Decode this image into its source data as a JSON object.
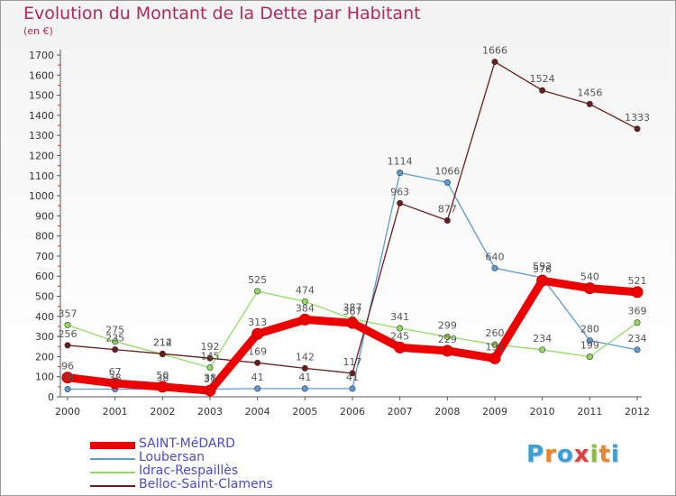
{
  "title": "Evolution du Montant de la Dette par Habitant",
  "subtitle": "(en €)",
  "logo": {
    "letters": [
      "P",
      "r",
      "o",
      "x",
      "i",
      "t",
      "i"
    ],
    "colors": [
      "#3aa0d8",
      "#e8862a",
      "#3aa0d8",
      "#e04040",
      "#8cbf3a",
      "#e8862a",
      "#3aa0d8"
    ]
  },
  "chart_data": {
    "type": "line",
    "x": [
      "2000",
      "2001",
      "2002",
      "2003",
      "2004",
      "2005",
      "2006",
      "2007",
      "2008",
      "2009",
      "2010",
      "2011",
      "2012"
    ],
    "ylim": [
      0,
      1700
    ],
    "yticks": [
      0,
      100,
      200,
      300,
      400,
      500,
      600,
      700,
      800,
      900,
      1000,
      1100,
      1200,
      1300,
      1400,
      1500,
      1600,
      1700
    ],
    "grid": false,
    "legend_position": "bottom-left",
    "series": [
      {
        "name": "SAINT-MéDARD",
        "color": "#ee0000",
        "values": [
          96,
          67,
          50,
          31,
          313,
          384,
          367,
          245,
          229,
          191,
          578,
          540,
          521
        ]
      },
      {
        "name": "Loubersan",
        "color": "#5b9bd5",
        "values": [
          38,
          38,
          38,
          38,
          41,
          41,
          41,
          1114,
          1066,
          640,
          592,
          280,
          234
        ]
      },
      {
        "name": "Idrac-Respaillès",
        "color": "#90dc60",
        "values": [
          357,
          275,
          212,
          145,
          525,
          474,
          387,
          341,
          299,
          260,
          234,
          199,
          369
        ]
      },
      {
        "name": "Belloc-Saint-Clamens",
        "color": "#6b1c1c",
        "values": [
          256,
          235,
          214,
          192,
          169,
          142,
          117,
          963,
          877,
          1666,
          1524,
          1456,
          1333
        ]
      }
    ]
  }
}
